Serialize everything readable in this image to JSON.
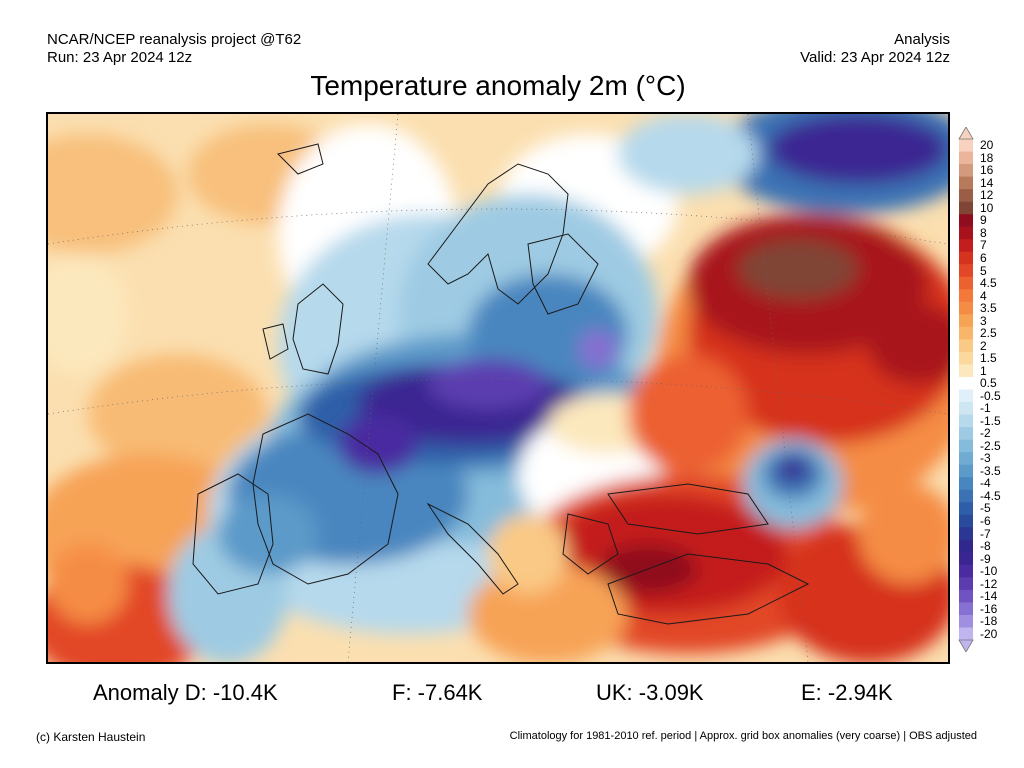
{
  "header": {
    "left_line1": "NCAR/NCEP reanalysis project @T62",
    "left_line2": "Run: 23 Apr 2024 12z",
    "right_line1": "Analysis",
    "right_line2": "Valid: 23 Apr 2024 12z"
  },
  "title": "Temperature anomaly 2m (°C)",
  "colorbar": {
    "levels": [
      "20",
      "18",
      "16",
      "14",
      "12",
      "10",
      "9",
      "8",
      "7",
      "6",
      "5",
      "4.5",
      "4",
      "3.5",
      "3",
      "2.5",
      "2",
      "1.5",
      "1",
      "0.5",
      "-0.5",
      "-1",
      "-1.5",
      "-2",
      "-2.5",
      "-3",
      "-3.5",
      "-4",
      "-4.5",
      "-5",
      "-6",
      "-7",
      "-8",
      "-9",
      "-10",
      "-12",
      "-14",
      "-16",
      "-18",
      "-20"
    ],
    "colors": [
      "#f7d2bf",
      "#ebb59b",
      "#d49a7c",
      "#b97a5c",
      "#9b5d45",
      "#804534",
      "#8f0d1e",
      "#a8121d",
      "#c41d1f",
      "#d6331f",
      "#e24728",
      "#ec6130",
      "#f2793a",
      "#f58c45",
      "#f7a356",
      "#f8b66b",
      "#fac985",
      "#fbd99d",
      "#fce8bd",
      "#ffffff",
      "#e1f0f8",
      "#cde6f2",
      "#b6d9ec",
      "#9ecbe3",
      "#86bcdb",
      "#70acd2",
      "#5b9ac9",
      "#4886bf",
      "#3a72b4",
      "#2f5ea8",
      "#2a4a9c",
      "#2a3893",
      "#30288c",
      "#3b2592",
      "#4a2ba0",
      "#5b3db0",
      "#6f54c1",
      "#8670d1",
      "#a08fe0",
      "#c1b5ef"
    ]
  },
  "anomalies": {
    "de": "Anomaly D: -10.4K",
    "fr": "F: -7.64K",
    "uk": "UK: -3.09K",
    "es": "E: -2.94K"
  },
  "footer": {
    "credit": "(c) Karsten Haustein",
    "note": "Climatology for 1981-2010 ref. period | Approx. grid box anomalies (very coarse) | OBS adjusted"
  }
}
